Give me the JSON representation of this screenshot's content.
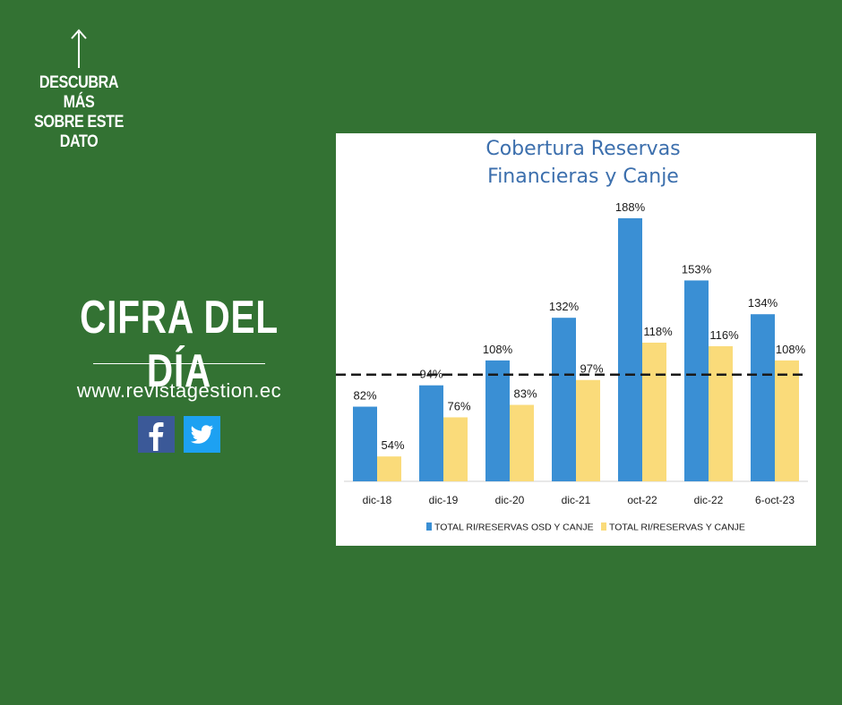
{
  "cta": {
    "text": "DESCUBRA MÁS\nSOBRE ESTE\nDATO"
  },
  "headline": "CIFRA DEL DÍA",
  "website": "www.revistagestion.ec",
  "social": {
    "facebook": "facebook-icon",
    "twitter": "twitter-icon"
  },
  "colors": {
    "background": "#337233",
    "blue": "#3a8fd4",
    "yellow": "#fadb7a",
    "title": "#3c6fad"
  },
  "chart_data": {
    "type": "bar",
    "title": "Cobertura Reservas Financieras y Canje",
    "title_lines": [
      "Cobertura Reservas",
      "Financieras y Canje"
    ],
    "categories": [
      "dic-18",
      "dic-19",
      "dic-20",
      "dic-21",
      "oct-22",
      "dic-22",
      "6-oct-23"
    ],
    "series": [
      {
        "name": "TOTAL RI/RESERVAS OSD Y CANJE",
        "color": "#3a8fd4",
        "values": [
          82,
          94,
          108,
          132,
          188,
          153,
          134
        ],
        "labels": [
          "82%",
          "94%",
          "108%",
          "132%",
          "188%",
          "153%",
          "134%"
        ]
      },
      {
        "name": "TOTAL RI/RESERVAS Y CANJE",
        "color": "#fadb7a",
        "values": [
          54,
          76,
          83,
          97,
          118,
          116,
          108
        ],
        "labels": [
          "54%",
          "76%",
          "83%",
          "97%",
          "118%",
          "116%",
          "108%"
        ]
      }
    ],
    "reference_line": 100,
    "ylim": [
      40,
      195
    ],
    "legend": "bottom"
  }
}
